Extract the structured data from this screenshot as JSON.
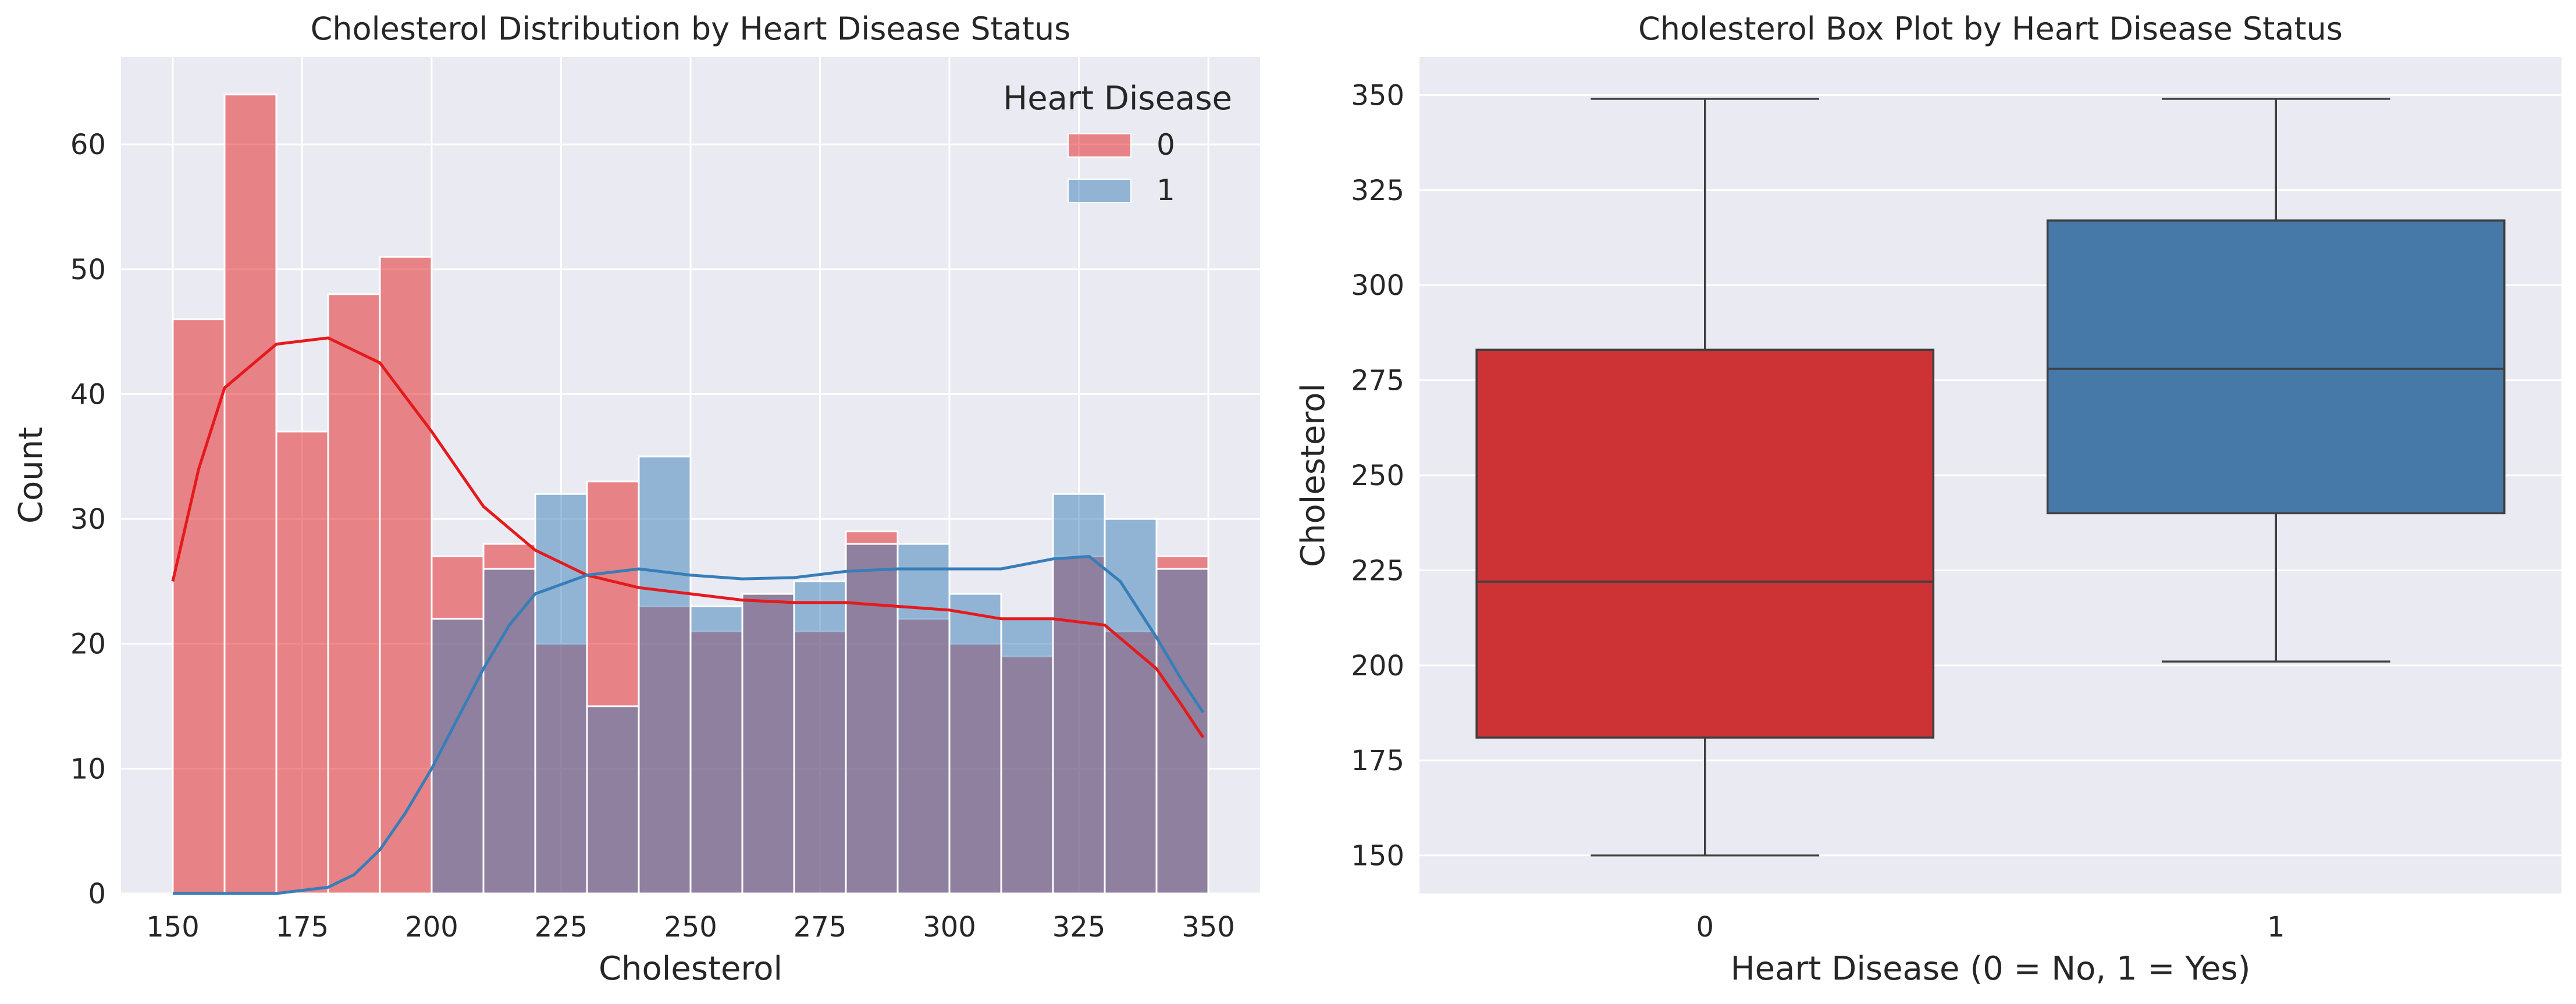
{
  "chart_data": [
    {
      "type": "histogram",
      "title": "Cholesterol Distribution by Heart Disease Status",
      "xlabel": "Cholesterol",
      "ylabel": "Count",
      "xlim": [
        140,
        360
      ],
      "ylim": [
        0,
        67
      ],
      "xticks": [
        150,
        175,
        200,
        225,
        250,
        275,
        300,
        325,
        350
      ],
      "yticks": [
        0,
        10,
        20,
        30,
        40,
        50,
        60
      ],
      "bin_edges": [
        150,
        160,
        170,
        180,
        190,
        200,
        210,
        220,
        230,
        240,
        250,
        260,
        270,
        280,
        290,
        300,
        310,
        320,
        330,
        340,
        350
      ],
      "grid": true,
      "legend": {
        "title": "Heart Disease",
        "position": "upper-right",
        "entries": [
          "0",
          "1"
        ]
      },
      "series": [
        {
          "name": "0",
          "color": "#e41a1c",
          "values": [
            46,
            64,
            37,
            48,
            51,
            27,
            28,
            20,
            33,
            23,
            21,
            24,
            21,
            29,
            22,
            20,
            19,
            27,
            21,
            27
          ],
          "kde": [
            [
              150,
              25
            ],
            [
              155,
              34
            ],
            [
              160,
              40.5
            ],
            [
              170,
              44
            ],
            [
              180,
              44.5
            ],
            [
              190,
              42.5
            ],
            [
              200,
              37
            ],
            [
              210,
              31
            ],
            [
              220,
              27.5
            ],
            [
              230,
              25.5
            ],
            [
              240,
              24.5
            ],
            [
              250,
              24
            ],
            [
              260,
              23.5
            ],
            [
              270,
              23.3
            ],
            [
              280,
              23.3
            ],
            [
              290,
              23
            ],
            [
              300,
              22.7
            ],
            [
              310,
              22
            ],
            [
              320,
              22
            ],
            [
              330,
              21.5
            ],
            [
              340,
              18
            ],
            [
              345,
              15
            ],
            [
              349,
              12.5
            ]
          ]
        },
        {
          "name": "1",
          "color": "#377eb8",
          "values": [
            0,
            0,
            0,
            0,
            0,
            22,
            26,
            32,
            15,
            35,
            23,
            24,
            25,
            28,
            28,
            24,
            22,
            32,
            30,
            26
          ],
          "kde": [
            [
              150,
              0
            ],
            [
              170,
              0
            ],
            [
              180,
              0.5
            ],
            [
              185,
              1.5
            ],
            [
              190,
              3.5
            ],
            [
              195,
              6.5
            ],
            [
              200,
              10
            ],
            [
              205,
              14
            ],
            [
              210,
              18
            ],
            [
              215,
              21.5
            ],
            [
              220,
              24
            ],
            [
              230,
              25.5
            ],
            [
              240,
              26
            ],
            [
              250,
              25.5
            ],
            [
              260,
              25.2
            ],
            [
              270,
              25.3
            ],
            [
              280,
              25.8
            ],
            [
              290,
              26
            ],
            [
              300,
              26
            ],
            [
              310,
              26
            ],
            [
              320,
              26.8
            ],
            [
              327,
              27
            ],
            [
              333,
              25
            ],
            [
              340,
              20.5
            ],
            [
              345,
              17
            ],
            [
              349,
              14.5
            ]
          ]
        }
      ]
    },
    {
      "type": "box",
      "title": "Cholesterol Box Plot by Heart Disease Status",
      "xlabel": "Heart Disease (0 = No, 1 = Yes)",
      "ylabel": "Cholesterol",
      "ylim": [
        140,
        360
      ],
      "yticks": [
        150,
        175,
        200,
        225,
        250,
        275,
        300,
        325,
        350
      ],
      "categories": [
        "0",
        "1"
      ],
      "grid": true,
      "boxes": [
        {
          "category": "0",
          "color": "#e41a1c",
          "fill": "#cd3235",
          "whislo": 150,
          "q1": 181,
          "median": 222,
          "q3": 283,
          "whishi": 349
        },
        {
          "category": "1",
          "color": "#377eb8",
          "fill": "#4679a8",
          "whislo": 201,
          "q1": 240,
          "median": 278,
          "q3": 317,
          "whishi": 349
        }
      ]
    }
  ]
}
